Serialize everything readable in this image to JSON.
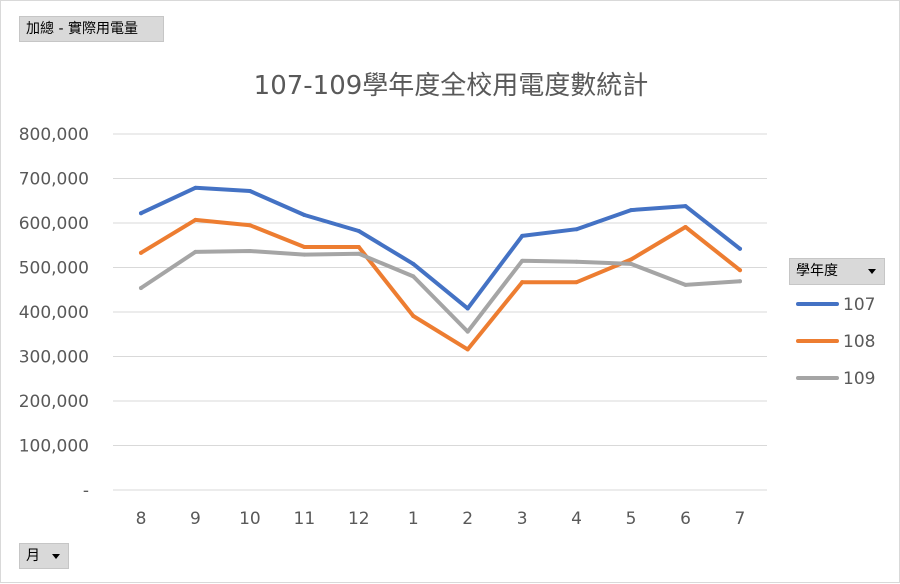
{
  "pivot_fields": {
    "value_field": "加總 - 實際用電量",
    "axis_field": "月",
    "legend_field": "學年度"
  },
  "chart_data": {
    "type": "line",
    "title": "107-109學年度全校用電度數統計",
    "categories": [
      "8",
      "9",
      "10",
      "11",
      "12",
      "1",
      "2",
      "3",
      "4",
      "5",
      "6",
      "7"
    ],
    "y_ticks": [
      "-",
      "100,000",
      "200,000",
      "300,000",
      "400,000",
      "500,000",
      "600,000",
      "700,000",
      "800,000"
    ],
    "ylim": [
      0,
      800000
    ],
    "grid": true,
    "legend_position": "right",
    "series": [
      {
        "name": "107",
        "color": "#4472c4",
        "values": [
          622000,
          679000,
          672000,
          618000,
          582000,
          508000,
          408000,
          571000,
          586000,
          629000,
          638000,
          542000
        ]
      },
      {
        "name": "108",
        "color": "#ed7d31",
        "values": [
          533000,
          607000,
          595000,
          546000,
          546000,
          391000,
          316000,
          467000,
          467000,
          518000,
          591000,
          494000
        ]
      },
      {
        "name": "109",
        "color": "#a5a5a5",
        "values": [
          454000,
          535000,
          537000,
          529000,
          531000,
          480000,
          356000,
          515000,
          513000,
          508000,
          461000,
          469000
        ]
      }
    ]
  }
}
